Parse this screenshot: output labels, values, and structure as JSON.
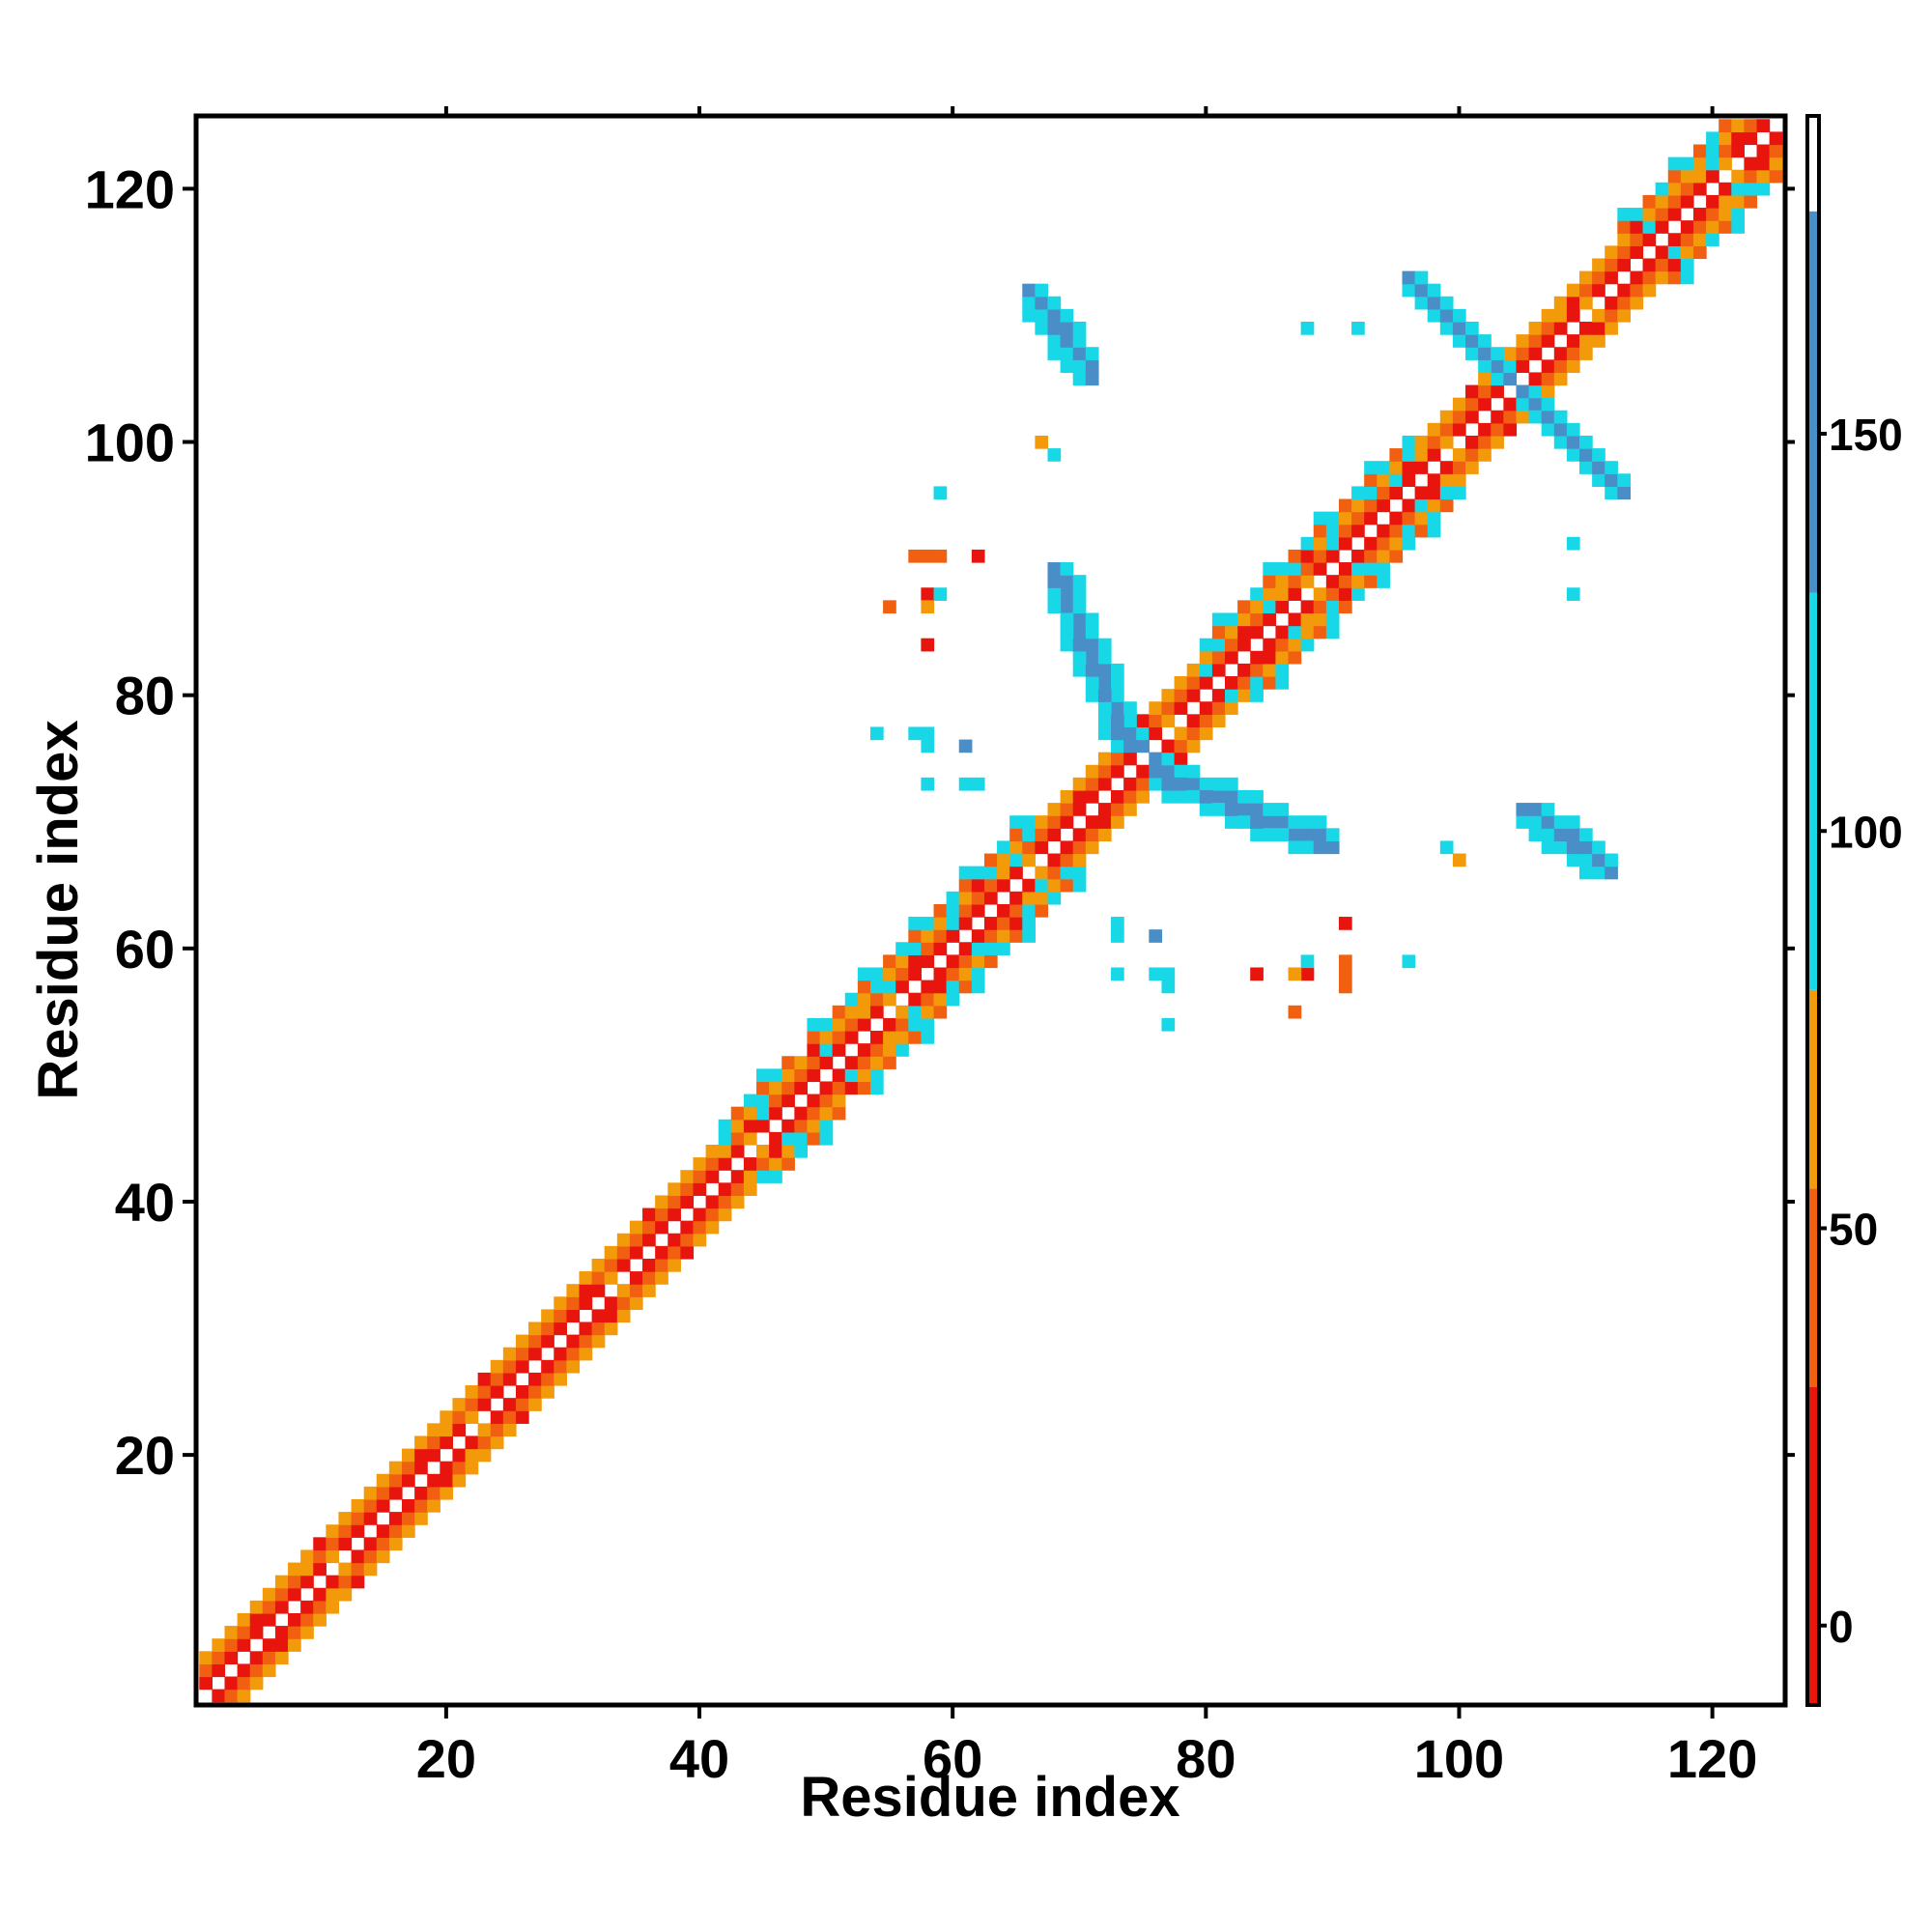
{
  "chart_data": {
    "type": "heatmap",
    "title": "",
    "xlabel": "Residue index",
    "ylabel": "Residue index",
    "n_residues": 125,
    "xlim": [
      1,
      125
    ],
    "ylim": [
      1,
      125
    ],
    "x_ticks": [
      20,
      40,
      60,
      80,
      100,
      120
    ],
    "y_ticks": [
      20,
      40,
      60,
      80,
      100,
      120
    ],
    "colorbar": {
      "ticks": [
        0,
        50,
        100,
        150
      ],
      "range": [
        -10,
        190
      ],
      "bands": [
        {
          "from": -10,
          "to": 30,
          "color": "#e8150f"
        },
        {
          "from": 30,
          "to": 55,
          "color": "#f06010"
        },
        {
          "from": 55,
          "to": 80,
          "color": "#f39a0a"
        },
        {
          "from": 80,
          "to": 130,
          "color": "#18d8e8"
        },
        {
          "from": 130,
          "to": 178,
          "color": "#4a8ec8"
        },
        {
          "from": 178,
          "to": 190,
          "color": "#ffffff"
        }
      ]
    },
    "colors": {
      "red": "#e8150f",
      "dark_orange": "#f06010",
      "orange": "#f39a0a",
      "cyan": "#18d8e8",
      "blue": "#4a8ec8"
    },
    "diagonal_band_offsets": [
      {
        "offset": 1,
        "color": "red"
      },
      {
        "offset": 2,
        "color": "dark_orange"
      },
      {
        "offset": 3,
        "color": "orange"
      }
    ],
    "helix_ranges": [
      [
        42,
        47
      ],
      [
        49,
        66
      ],
      [
        80,
        96
      ],
      [
        113,
        124
      ]
    ],
    "regions": [
      {
        "name": "sheet-1",
        "x": [
          69,
          75
        ],
        "y": [
          76,
          88
        ],
        "color": "cyan",
        "inner": "blue"
      },
      {
        "name": "sheet-2",
        "x": [
          76,
          90
        ],
        "y": [
          68,
          74
        ],
        "color": "cyan",
        "inner": "blue"
      },
      {
        "name": "hairpin-a",
        "x": [
          96,
          104
        ],
        "y": [
          105,
          113
        ],
        "color": "cyan",
        "inner": "blue"
      },
      {
        "name": "hairpin-b",
        "x": [
          105,
          113
        ],
        "y": [
          96,
          104
        ],
        "color": "cyan",
        "inner": "blue"
      },
      {
        "name": "long-range-1",
        "x": [
          66,
          71
        ],
        "y": [
          105,
          111
        ],
        "color": "cyan",
        "inner": "blue"
      },
      {
        "name": "long-range-2",
        "x": [
          106,
          112
        ],
        "y": [
          66,
          71
        ],
        "color": "cyan",
        "inner": "blue"
      }
    ],
    "scattered_contacts": [
      {
        "x": 67,
        "y": 100,
        "color": "orange"
      },
      {
        "x": 68,
        "y": 99,
        "color": "cyan"
      },
      {
        "x": 88,
        "y": 109,
        "color": "cyan"
      },
      {
        "x": 92,
        "y": 109,
        "color": "cyan"
      },
      {
        "x": 59,
        "y": 96,
        "color": "cyan"
      },
      {
        "x": 57,
        "y": 91,
        "color": "dark_orange"
      },
      {
        "x": 58,
        "y": 91,
        "color": "dark_orange"
      },
      {
        "x": 62,
        "y": 91,
        "color": "dark_orange"
      },
      {
        "x": 55,
        "y": 87,
        "color": "dark_orange"
      },
      {
        "x": 58,
        "y": 88,
        "color": "red"
      },
      {
        "x": 58,
        "y": 87,
        "color": "dark_orange"
      },
      {
        "x": 59,
        "y": 88,
        "color": "cyan"
      },
      {
        "x": 58,
        "y": 84,
        "color": "red"
      },
      {
        "x": 54,
        "y": 77,
        "color": "cyan"
      },
      {
        "x": 57,
        "y": 77,
        "color": "cyan"
      },
      {
        "x": 58,
        "y": 76,
        "color": "cyan"
      },
      {
        "x": 61,
        "y": 76,
        "color": "blue"
      },
      {
        "x": 58,
        "y": 73,
        "color": "cyan"
      },
      {
        "x": 61,
        "y": 73,
        "color": "cyan"
      },
      {
        "x": 62,
        "y": 73,
        "color": "cyan"
      },
      {
        "x": 109,
        "y": 92,
        "color": "cyan"
      },
      {
        "x": 109,
        "y": 88,
        "color": "cyan"
      },
      {
        "x": 99,
        "y": 68,
        "color": "cyan"
      },
      {
        "x": 100,
        "y": 67,
        "color": "orange"
      },
      {
        "x": 73,
        "y": 62,
        "color": "cyan"
      },
      {
        "x": 73,
        "y": 61,
        "color": "cyan"
      },
      {
        "x": 76,
        "y": 61,
        "color": "blue"
      },
      {
        "x": 73,
        "y": 58,
        "color": "cyan"
      },
      {
        "x": 76,
        "y": 58,
        "color": "cyan"
      },
      {
        "x": 77,
        "y": 58,
        "color": "cyan"
      },
      {
        "x": 77,
        "y": 57,
        "color": "cyan"
      },
      {
        "x": 77,
        "y": 54,
        "color": "cyan"
      },
      {
        "x": 84,
        "y": 58,
        "color": "red"
      },
      {
        "x": 87,
        "y": 58,
        "color": "orange"
      },
      {
        "x": 88,
        "y": 58,
        "color": "red"
      },
      {
        "x": 88,
        "y": 59,
        "color": "cyan"
      },
      {
        "x": 91,
        "y": 58,
        "color": "dark_orange"
      },
      {
        "x": 91,
        "y": 59,
        "color": "dark_orange"
      },
      {
        "x": 91,
        "y": 62,
        "color": "red"
      },
      {
        "x": 96,
        "y": 59,
        "color": "cyan"
      },
      {
        "x": 87,
        "y": 55,
        "color": "dark_orange"
      }
    ]
  }
}
